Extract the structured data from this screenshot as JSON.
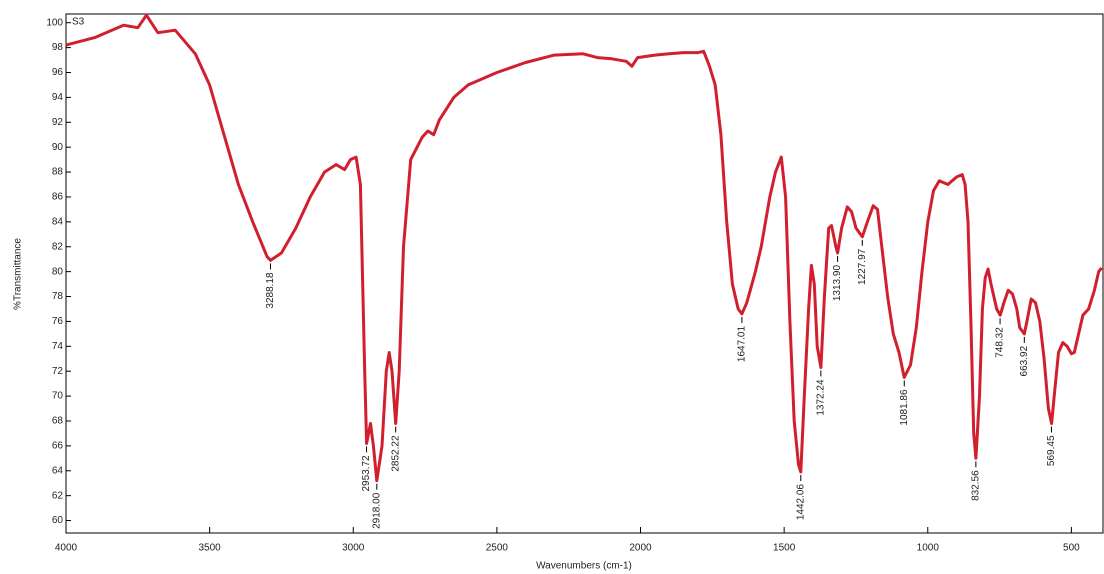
{
  "chart_data": {
    "type": "line",
    "sample_label": "S3",
    "y_label": "%Transmittance",
    "x_label": "Wavenumbers (cm-1)",
    "color": "#d21f2e",
    "xlim": [
      4000,
      390
    ],
    "ylim": [
      59,
      100.7
    ],
    "xticks": [
      4000,
      3500,
      3000,
      2500,
      2000,
      1500,
      1000,
      500
    ],
    "yticks": [
      60,
      62,
      64,
      66,
      68,
      70,
      72,
      74,
      76,
      78,
      80,
      82,
      84,
      86,
      88,
      90,
      92,
      94,
      96,
      98,
      100
    ],
    "x": [
      4000,
      3900,
      3800,
      3750,
      3720,
      3680,
      3620,
      3550,
      3500,
      3450,
      3400,
      3350,
      3300,
      3288,
      3250,
      3200,
      3150,
      3100,
      3060,
      3030,
      3010,
      2990,
      2975,
      2960,
      2953.72,
      2940,
      2930,
      2918,
      2900,
      2885,
      2875,
      2865,
      2852.22,
      2840,
      2825,
      2800,
      2760,
      2740,
      2720,
      2700,
      2650,
      2600,
      2500,
      2400,
      2300,
      2200,
      2150,
      2100,
      2050,
      2030,
      2010,
      1950,
      1900,
      1850,
      1800,
      1780,
      1760,
      1740,
      1720,
      1700,
      1680,
      1660,
      1647,
      1630,
      1600,
      1580,
      1550,
      1530,
      1510,
      1495,
      1480,
      1465,
      1450,
      1442,
      1430,
      1415,
      1405,
      1395,
      1385,
      1372,
      1360,
      1345,
      1335,
      1320,
      1314,
      1300,
      1280,
      1265,
      1250,
      1228,
      1210,
      1190,
      1175,
      1160,
      1140,
      1120,
      1100,
      1082,
      1060,
      1040,
      1020,
      1000,
      980,
      960,
      930,
      900,
      880,
      870,
      860,
      850,
      840,
      832.56,
      820,
      810,
      800,
      790,
      780,
      760,
      748,
      735,
      720,
      705,
      690,
      680,
      664,
      655,
      640,
      625,
      610,
      595,
      580,
      569,
      560,
      545,
      530,
      515,
      500,
      490,
      475,
      460,
      440,
      420,
      405,
      395
    ],
    "values": [
      98.2,
      98.8,
      99.8,
      99.6,
      100.6,
      99.2,
      99.4,
      97.5,
      95,
      91,
      87,
      84,
      81.2,
      80.9,
      81.5,
      83.5,
      86,
      88,
      88.6,
      88.2,
      89,
      89.2,
      87,
      72,
      66.2,
      67.8,
      66,
      63.2,
      66,
      72,
      73.5,
      72,
      67.8,
      72,
      82,
      89,
      90.8,
      91.3,
      91,
      92.2,
      94,
      95,
      96,
      96.8,
      97.4,
      97.5,
      97.2,
      97.1,
      96.9,
      96.5,
      97.2,
      97.4,
      97.5,
      97.6,
      97.6,
      97.7,
      96.5,
      95,
      91,
      84,
      79,
      77,
      76.6,
      77.5,
      80,
      82,
      86,
      88,
      89.2,
      86,
      76,
      68,
      64.5,
      63.9,
      70,
      77,
      80.5,
      79,
      74,
      72.3,
      78,
      83.5,
      83.7,
      82,
      81.5,
      83.5,
      85.2,
      84.8,
      83.5,
      82.8,
      84,
      85.3,
      85,
      82,
      78,
      75,
      73.5,
      71.5,
      72.5,
      75.5,
      80,
      84,
      86.5,
      87.3,
      87,
      87.6,
      87.8,
      87,
      84,
      76,
      67,
      65,
      70,
      77,
      79.5,
      80.2,
      79,
      77,
      76.5,
      77.5,
      78.5,
      78.2,
      77,
      75.5,
      75,
      76,
      77.8,
      77.5,
      76,
      73,
      69,
      67.8,
      70,
      73.5,
      74.3,
      74,
      73.4,
      73.5,
      75,
      76.5,
      77,
      78.5,
      80,
      80.3
    ],
    "annotations": [
      {
        "x": 3288.18,
        "y": 80.9,
        "label": "3288.18"
      },
      {
        "x": 2953.72,
        "y": 66.2,
        "label": "2953.72"
      },
      {
        "x": 2918.0,
        "y": 63.2,
        "label": "2918.00"
      },
      {
        "x": 2852.22,
        "y": 67.8,
        "label": "2852.22"
      },
      {
        "x": 1647.01,
        "y": 76.6,
        "label": "1647.01"
      },
      {
        "x": 1442.06,
        "y": 63.9,
        "label": "1442.06"
      },
      {
        "x": 1372.24,
        "y": 72.3,
        "label": "1372.24"
      },
      {
        "x": 1313.9,
        "y": 81.5,
        "label": "1313.90"
      },
      {
        "x": 1227.97,
        "y": 82.8,
        "label": "1227.97"
      },
      {
        "x": 1081.86,
        "y": 71.5,
        "label": "1081.86"
      },
      {
        "x": 832.56,
        "y": 65,
        "label": "832.56"
      },
      {
        "x": 748.32,
        "y": 76.5,
        "label": "748.32"
      },
      {
        "x": 663.92,
        "y": 75,
        "label": "663.92"
      },
      {
        "x": 569.45,
        "y": 67.8,
        "label": "569.45"
      }
    ]
  }
}
